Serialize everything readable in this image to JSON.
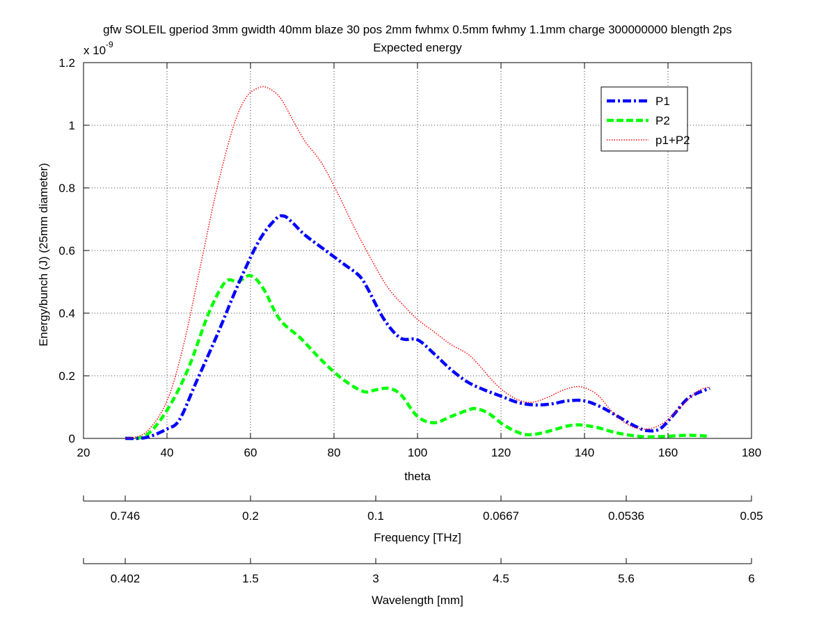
{
  "chart_data": {
    "type": "line",
    "title": "gfw SOLEIL gperiod 3mm gwidth 40mm blaze 30 pos 2mm fwhmx 0.5mm fwhmy 1.1mm charge 300000000 blength 2ps",
    "subtitle": "Expected energy",
    "xlabel": "theta",
    "ylabel": "Energy/bunch (J) (25mm diameter)",
    "y_multiplier_label": "x 10",
    "y_multiplier_exponent": "-9",
    "xlim": [
      20,
      180
    ],
    "ylim": [
      0,
      1.2
    ],
    "grid": true,
    "legend_location": "top-right",
    "x_ticks": [
      "20",
      "40",
      "60",
      "80",
      "100",
      "120",
      "140",
      "160",
      "180"
    ],
    "y_ticks": [
      "0",
      "0.2",
      "0.4",
      "0.6",
      "0.8",
      "1",
      "1.2"
    ],
    "secondary_axes": [
      {
        "label": "Frequency [THz]",
        "tick_labels": [
          "0.746",
          "0.2",
          "0.1",
          "0.0667",
          "0.0536",
          "0.05"
        ],
        "tick_theta": [
          30,
          60,
          90,
          120,
          150,
          180
        ]
      },
      {
        "label": "Wavelength [mm]",
        "tick_labels": [
          "0.402",
          "1.5",
          "3",
          "4.5",
          "5.6",
          "6"
        ],
        "tick_theta": [
          30,
          60,
          90,
          120,
          150,
          180
        ]
      }
    ],
    "series": [
      {
        "name": "P1",
        "color": "#0000ff",
        "style": "dashdot",
        "x": [
          30,
          35,
          40,
          43,
          47,
          52,
          57,
          62,
          66,
          68,
          70,
          73,
          78,
          82,
          86,
          88,
          92,
          96,
          100,
          104,
          108,
          112,
          116,
          120,
          124,
          128,
          132,
          136,
          140,
          144,
          148,
          152,
          155,
          158,
          161,
          165,
          170
        ],
        "values": [
          0,
          0.003,
          0.03,
          0.06,
          0.18,
          0.33,
          0.49,
          0.63,
          0.7,
          0.71,
          0.69,
          0.65,
          0.6,
          0.56,
          0.52,
          0.48,
          0.38,
          0.32,
          0.315,
          0.27,
          0.22,
          0.18,
          0.155,
          0.135,
          0.115,
          0.107,
          0.11,
          0.12,
          0.12,
          0.1,
          0.07,
          0.04,
          0.025,
          0.03,
          0.07,
          0.13,
          0.16
        ]
      },
      {
        "name": "P2",
        "color": "#00ff00",
        "style": "dashed",
        "x": [
          30,
          35,
          40,
          45,
          50,
          54,
          57,
          60,
          63,
          67,
          72,
          77,
          82,
          87,
          90,
          93,
          96,
          100,
          104,
          108,
          112,
          114,
          117,
          121,
          125,
          128,
          132,
          136,
          139,
          143,
          147,
          151,
          155,
          160,
          165,
          170
        ],
        "values": [
          0,
          0.01,
          0.09,
          0.22,
          0.4,
          0.5,
          0.5,
          0.52,
          0.48,
          0.38,
          0.32,
          0.25,
          0.19,
          0.15,
          0.155,
          0.16,
          0.14,
          0.07,
          0.05,
          0.07,
          0.09,
          0.095,
          0.08,
          0.04,
          0.015,
          0.013,
          0.025,
          0.04,
          0.043,
          0.035,
          0.02,
          0.01,
          0.005,
          0.007,
          0.01,
          0.007
        ]
      },
      {
        "name": "p1+P2",
        "color": "#ff0000",
        "style": "dotted",
        "x": [
          30,
          35,
          40,
          44,
          48,
          52,
          56,
          59,
          62,
          64,
          67,
          70,
          73,
          77,
          81,
          85,
          89,
          93,
          97,
          100,
          104,
          108,
          112,
          115,
          119,
          123,
          127,
          131,
          135,
          139,
          143,
          147,
          151,
          155,
          159,
          163,
          167,
          170
        ],
        "values": [
          0,
          0.02,
          0.12,
          0.3,
          0.55,
          0.8,
          1.0,
          1.09,
          1.12,
          1.12,
          1.09,
          1.02,
          0.95,
          0.88,
          0.78,
          0.67,
          0.57,
          0.48,
          0.42,
          0.38,
          0.34,
          0.3,
          0.27,
          0.23,
          0.17,
          0.13,
          0.115,
          0.13,
          0.155,
          0.165,
          0.14,
          0.08,
          0.04,
          0.03,
          0.05,
          0.1,
          0.15,
          0.165
        ]
      }
    ]
  }
}
